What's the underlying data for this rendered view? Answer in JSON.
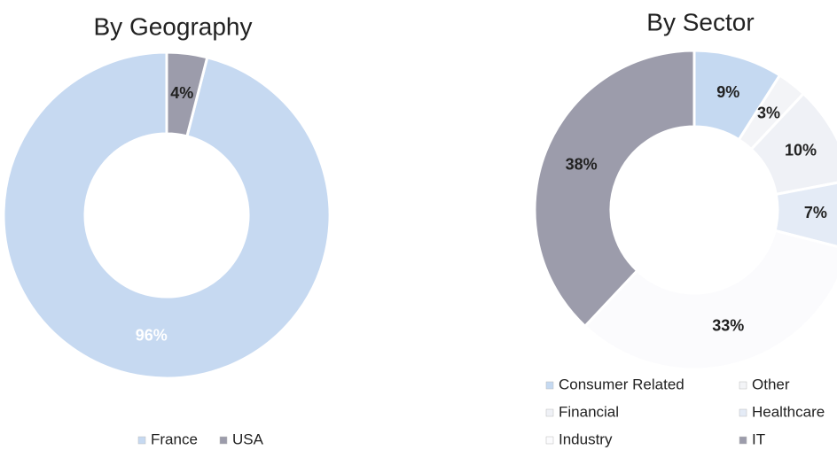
{
  "chart_data": [
    {
      "type": "pie",
      "title": "By Geography",
      "categories": [
        "France",
        "USA"
      ],
      "values": [
        96,
        4
      ],
      "value_labels": [
        "96%",
        "4%"
      ],
      "colors": [
        "#c6d9f1",
        "#9c9cab"
      ]
    },
    {
      "type": "pie",
      "title": "By Sector",
      "categories": [
        "Consumer Related",
        "Other",
        "Financial",
        "Healthcare",
        "Industry",
        "IT"
      ],
      "values": [
        9,
        3,
        10,
        7,
        33,
        38
      ],
      "value_labels": [
        "9%",
        "3%",
        "10%",
        "7%",
        "33%",
        "38%"
      ],
      "colors": [
        "#c5d9f1",
        "#f3f4f7",
        "#eff1f6",
        "#e4ebf6",
        "#fbfbfd",
        "#9c9cab"
      ]
    }
  ]
}
